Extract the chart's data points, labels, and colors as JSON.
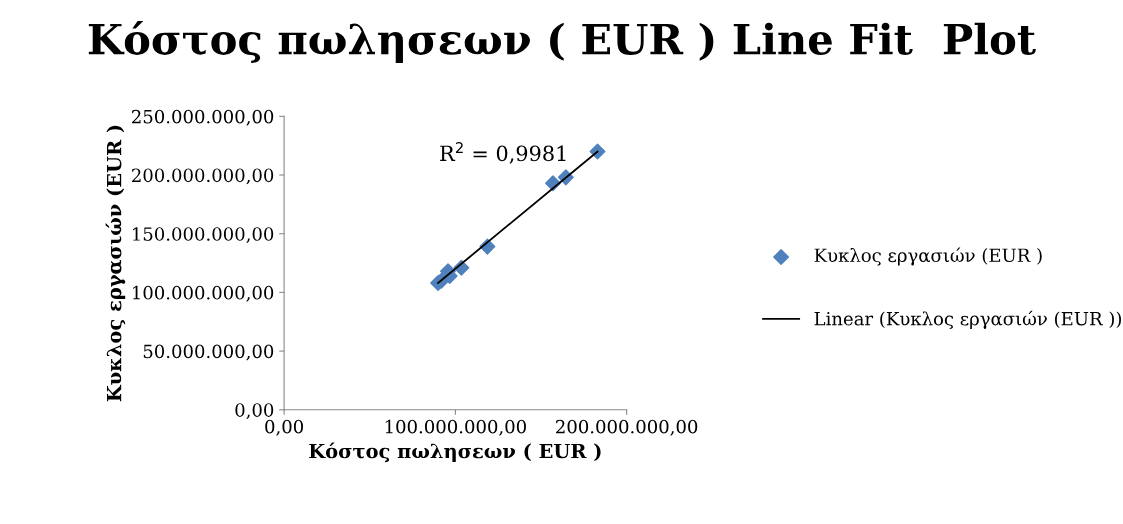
{
  "chart_data": {
    "type": "scatter",
    "title": "Κόστος πωλησεων ( EUR ) Line Fit  Plot",
    "xlabel": "Κόστος πωλησεων ( EUR )",
    "ylabel": "Κυκλος εργασιών (EUR )",
    "xlim": [
      0,
      200000000
    ],
    "xticks": [
      {
        "value": 0,
        "label": "0,00"
      },
      {
        "value": 100000000,
        "label": "100.000.000,00"
      },
      {
        "value": 200000000,
        "label": "200.000.000,00"
      }
    ],
    "ylim": [
      0,
      250000000
    ],
    "yticks": [
      {
        "value": 0,
        "label": "0,00"
      },
      {
        "value": 50000000,
        "label": "50.000.000,00"
      },
      {
        "value": 100000000,
        "label": "100.000.000,00"
      },
      {
        "value": 150000000,
        "label": "150.000.000,00"
      },
      {
        "value": 200000000,
        "label": "200.000.000,00"
      },
      {
        "value": 250000000,
        "label": "250.000.000,00"
      }
    ],
    "grid": false,
    "legend": "right",
    "marker": "diamond",
    "annotations": [
      "R$^{2}$ = 0,9981"
    ],
    "series": [
      {
        "name": "Κυκλος εργασιών (EUR )",
        "color": "#4f81bd",
        "x": [
          183000000,
          164500000,
          157000000,
          118700000,
          103500000,
          95700000,
          96700000,
          89900000,
          91800000
        ],
        "values": [
          220000000,
          198000000,
          193000000,
          139000000,
          121000000,
          118000000,
          114000000,
          108000000,
          110000000
        ]
      },
      {
        "name": "Linear (Κυκλος εργασιών (EUR ))",
        "type": "line",
        "color": "#000000",
        "marker": "none",
        "line_style": "solid",
        "x": [
          89900000,
          183000000
        ],
        "values": [
          108000000,
          220000000
        ]
      }
    ]
  }
}
